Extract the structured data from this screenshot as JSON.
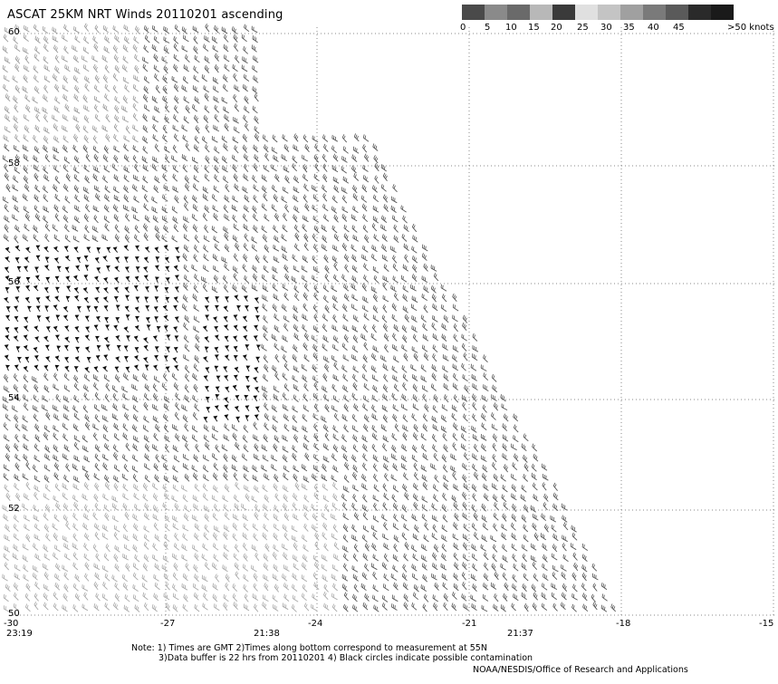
{
  "title": "ASCAT 25KM NRT Winds 20110201 ascending",
  "colorbar": {
    "labels": [
      "0",
      "5",
      "10",
      "15",
      "20",
      "25",
      "30",
      "35",
      "40",
      "45",
      ">50 knots"
    ],
    "colors": [
      "#4a4a4a",
      "#8a8a8a",
      "#6a6a6a",
      "#b8b8b8",
      "#3a3a3a",
      "#e0e0e0",
      "#c4c4c4",
      "#a0a0a0",
      "#7a7a7a",
      "#5a5a5a",
      "#2a2a2a",
      "#1a1a1a"
    ]
  },
  "map": {
    "lat_labels": [
      "60",
      "58",
      "56",
      "54",
      "52",
      "50"
    ],
    "lon_labels": [
      "-30",
      "-27",
      "-24",
      "-21",
      "-18",
      "-15"
    ],
    "time_labels": [
      "23:19",
      "21:38",
      "21:37"
    ],
    "lon_range": [
      -30,
      -15
    ],
    "lat_range": [
      50,
      60
    ]
  },
  "notes": {
    "line1": "Note: 1) Times are GMT 2)Times along bottom correspond to measurement at 55N",
    "line2": "3)Data buffer is 22 hrs from 20110201 4) Black circles indicate possible contamination",
    "line3": "NOAA/NESDIS/Office of Research and Applications"
  }
}
